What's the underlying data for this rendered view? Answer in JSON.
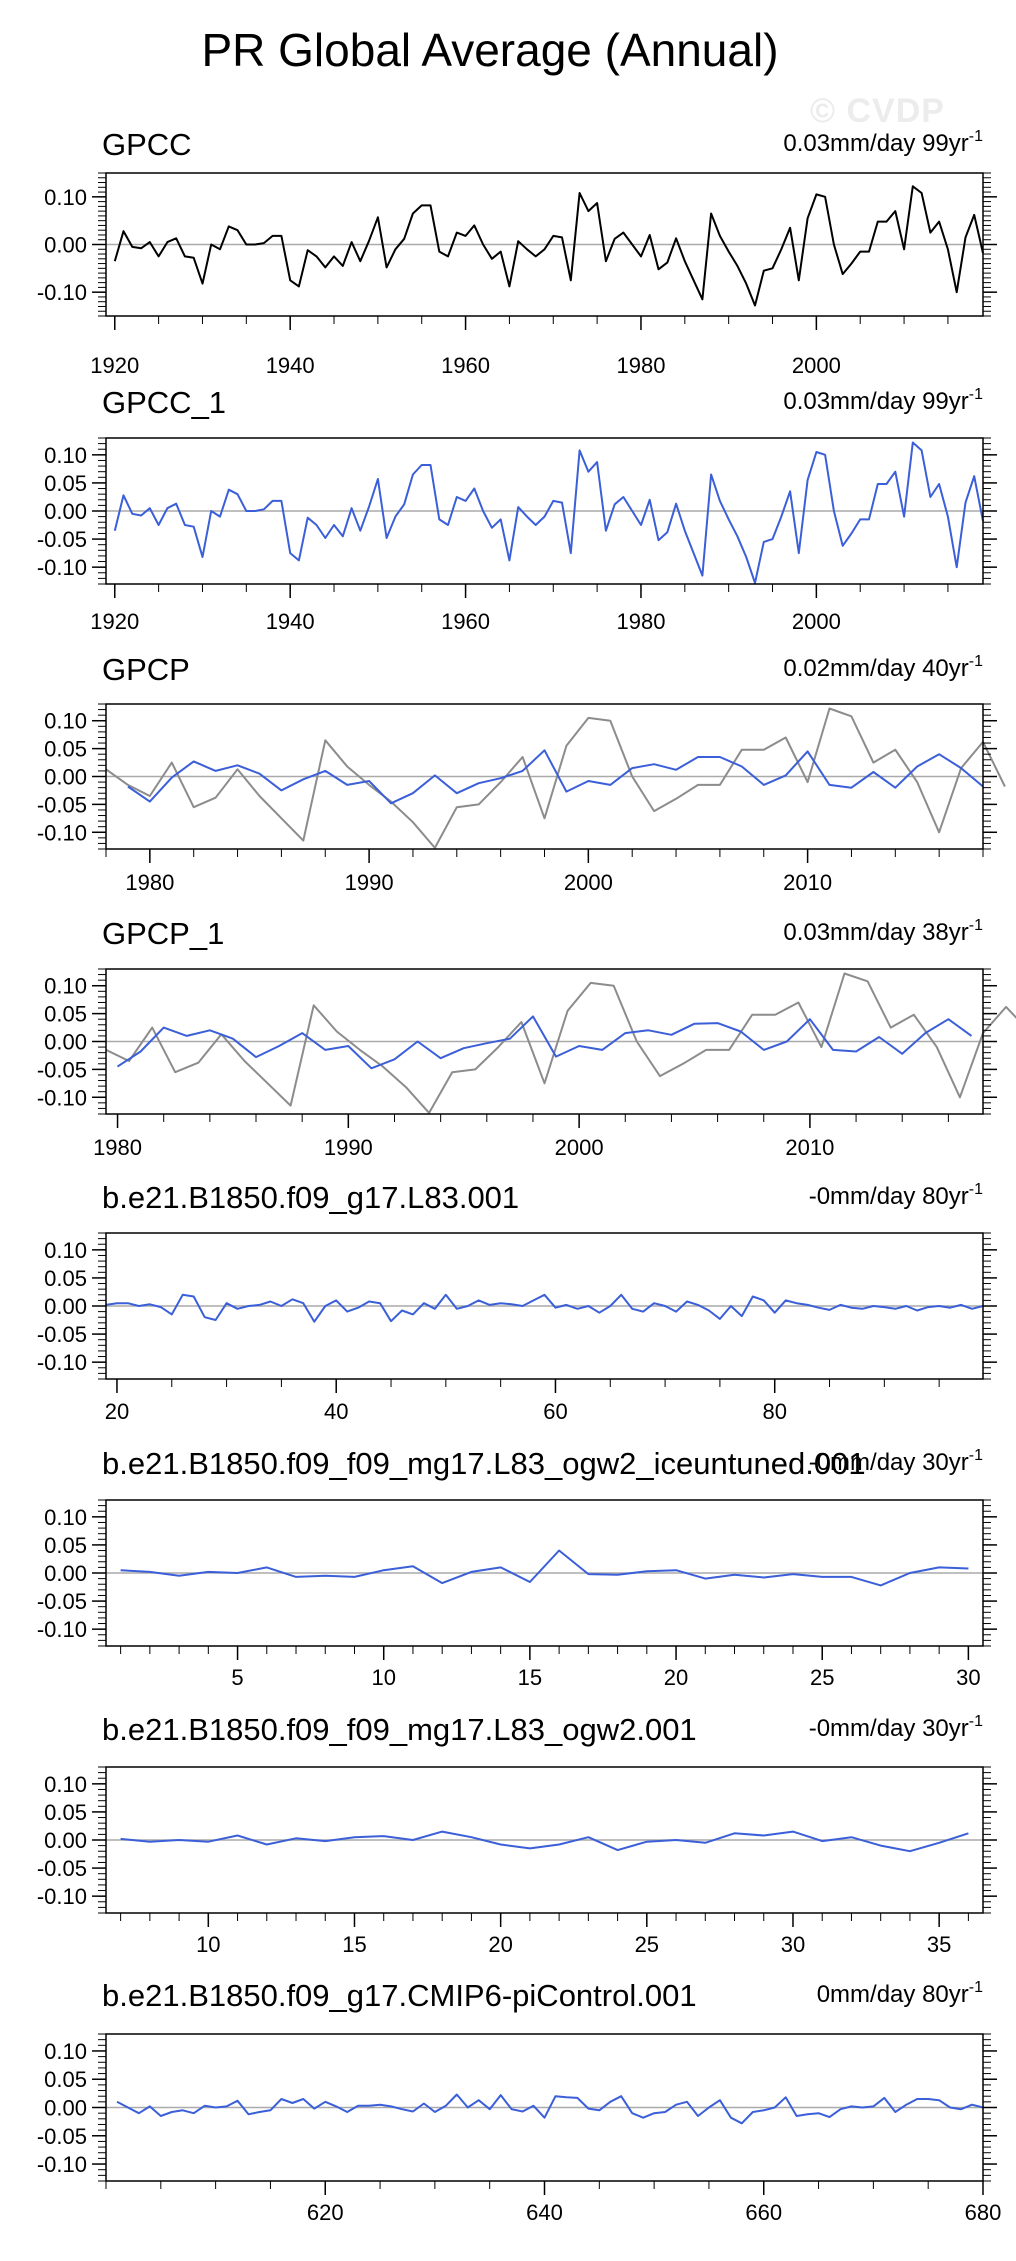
{
  "title": "PR Global Average (Annual)",
  "watermark": "© CVDP",
  "colors": {
    "observation": "#000000",
    "observation_ref": "#8c8c8c",
    "model": "#3b5fd8",
    "zero_line": "#aaaaaa",
    "frame": "#000000"
  },
  "chart_data": [
    {
      "type": "line",
      "title": "GPCC",
      "stats": "0.03mm/day 99yr",
      "stats_superscript": "-1",
      "xlim": [
        1919,
        2019
      ],
      "ylim": [
        -0.15,
        0.15
      ],
      "yticks": [
        0.1,
        0.0,
        -0.1
      ],
      "ytick_labels": [
        "0.10",
        "0.00",
        "-0.10"
      ],
      "xticks": [
        1920,
        1940,
        1960,
        1980,
        2000
      ],
      "xtick_labels": [
        "1920",
        "1940",
        "1960",
        "1980",
        "2000"
      ],
      "series": [
        {
          "name": "GPCC",
          "color": "#000000",
          "x_start": 1920,
          "values": [
            -0.035,
            0.028,
            -0.005,
            -0.008,
            0.005,
            -0.025,
            0.005,
            0.013,
            -0.025,
            -0.028,
            -0.082,
            0.0,
            -0.01,
            0.038,
            0.03,
            0.0,
            0.0,
            0.003,
            0.018,
            0.018,
            -0.075,
            -0.088,
            -0.012,
            -0.025,
            -0.048,
            -0.025,
            -0.045,
            0.005,
            -0.035,
            0.008,
            0.057,
            -0.048,
            -0.01,
            0.012,
            0.065,
            0.082,
            0.082,
            -0.015,
            -0.025,
            0.025,
            0.018,
            0.04,
            0.0,
            -0.03,
            -0.015,
            -0.088,
            0.007,
            -0.01,
            -0.025,
            -0.01,
            0.018,
            0.015,
            -0.075,
            0.108,
            0.07,
            0.087,
            -0.035,
            0.012,
            0.025,
            0.0,
            -0.025,
            0.02,
            -0.052,
            -0.038,
            0.013,
            -0.035,
            -0.075,
            -0.115,
            0.065,
            0.018,
            -0.015,
            -0.045,
            -0.082,
            -0.128,
            -0.055,
            -0.05,
            -0.01,
            0.035,
            -0.075,
            0.055,
            0.105,
            0.1,
            0.0,
            -0.062,
            -0.04,
            -0.015,
            -0.015,
            0.048,
            0.048,
            0.07,
            -0.01,
            0.122,
            0.108,
            0.025,
            0.048,
            -0.01,
            -0.1,
            0.015,
            0.062,
            -0.018
          ]
        }
      ]
    },
    {
      "type": "line",
      "title": "GPCC_1",
      "stats": "0.03mm/day 99yr",
      "stats_superscript": "-1",
      "xlim": [
        1919,
        2019
      ],
      "ylim": [
        -0.13,
        0.13
      ],
      "yticks": [
        0.1,
        0.05,
        0.0,
        -0.05,
        -0.1
      ],
      "ytick_labels": [
        "0.10",
        "0.05",
        "0.00",
        "-0.05",
        "-0.10"
      ],
      "xticks": [
        1920,
        1940,
        1960,
        1980,
        2000
      ],
      "xtick_labels": [
        "1920",
        "1940",
        "1960",
        "1980",
        "2000"
      ],
      "series": [
        {
          "name": "GPCC_1",
          "color": "#3b5fd8",
          "x_start": 1920,
          "values": [
            -0.035,
            0.028,
            -0.005,
            -0.008,
            0.005,
            -0.025,
            0.005,
            0.013,
            -0.025,
            -0.028,
            -0.082,
            0.0,
            -0.01,
            0.038,
            0.03,
            0.0,
            0.0,
            0.003,
            0.018,
            0.018,
            -0.075,
            -0.088,
            -0.012,
            -0.025,
            -0.048,
            -0.025,
            -0.045,
            0.005,
            -0.035,
            0.008,
            0.057,
            -0.048,
            -0.01,
            0.012,
            0.065,
            0.082,
            0.082,
            -0.015,
            -0.025,
            0.025,
            0.018,
            0.04,
            0.0,
            -0.03,
            -0.015,
            -0.088,
            0.007,
            -0.01,
            -0.025,
            -0.01,
            0.018,
            0.015,
            -0.075,
            0.108,
            0.07,
            0.087,
            -0.035,
            0.012,
            0.025,
            0.0,
            -0.025,
            0.02,
            -0.052,
            -0.038,
            0.013,
            -0.035,
            -0.075,
            -0.115,
            0.065,
            0.018,
            -0.015,
            -0.045,
            -0.082,
            -0.128,
            -0.055,
            -0.05,
            -0.01,
            0.035,
            -0.075,
            0.055,
            0.105,
            0.1,
            0.0,
            -0.062,
            -0.04,
            -0.015,
            -0.015,
            0.048,
            0.048,
            0.07,
            -0.01,
            0.122,
            0.108,
            0.025,
            0.048,
            -0.01,
            -0.1,
            0.015,
            0.062,
            -0.018
          ]
        }
      ]
    },
    {
      "type": "line",
      "title": "GPCP",
      "stats": "0.02mm/day 40yr",
      "stats_superscript": "-1",
      "xlim": [
        1978,
        2018
      ],
      "ylim": [
        -0.13,
        0.13
      ],
      "yticks": [
        0.1,
        0.05,
        0.0,
        -0.05,
        -0.1
      ],
      "ytick_labels": [
        "0.10",
        "0.05",
        "0.00",
        "-0.05",
        "-0.10"
      ],
      "xticks": [
        1980,
        1990,
        2000,
        2010
      ],
      "xtick_labels": [
        "1980",
        "1990",
        "2000",
        "2010"
      ],
      "series": [
        {
          "name": "GPCC",
          "color": "#8c8c8c",
          "x_start": 1978,
          "values": [
            0.013,
            -0.015,
            -0.035,
            0.025,
            -0.055,
            -0.038,
            0.013,
            -0.035,
            -0.075,
            -0.115,
            0.065,
            0.018,
            -0.015,
            -0.045,
            -0.082,
            -0.128,
            -0.055,
            -0.05,
            -0.01,
            0.035,
            -0.075,
            0.055,
            0.105,
            0.1,
            0.0,
            -0.062,
            -0.04,
            -0.015,
            -0.015,
            0.048,
            0.048,
            0.07,
            -0.01,
            0.122,
            0.108,
            0.025,
            0.048,
            -0.01,
            -0.1,
            0.015,
            0.062,
            -0.018
          ]
        },
        {
          "name": "GPCP",
          "color": "#3b5fd8",
          "x_start": 1979,
          "values": [
            -0.018,
            -0.045,
            -0.002,
            0.027,
            0.01,
            0.02,
            0.005,
            -0.025,
            -0.005,
            0.01,
            -0.015,
            -0.008,
            -0.048,
            -0.03,
            0.002,
            -0.03,
            -0.012,
            -0.003,
            0.01,
            0.047,
            -0.027,
            -0.008,
            -0.015,
            0.015,
            0.022,
            0.012,
            0.035,
            0.035,
            0.018,
            -0.015,
            0.002,
            0.045,
            -0.015,
            -0.02,
            0.008,
            -0.02,
            0.018,
            0.04,
            0.015,
            -0.018
          ]
        }
      ]
    },
    {
      "type": "line",
      "title": "GPCP_1",
      "stats": "0.03mm/day 38yr",
      "stats_superscript": "-1",
      "xlim": [
        1979.5,
        2017.5
      ],
      "ylim": [
        -0.13,
        0.13
      ],
      "yticks": [
        0.1,
        0.05,
        0.0,
        -0.05,
        -0.1
      ],
      "ytick_labels": [
        "0.10",
        "0.05",
        "0.00",
        "-0.05",
        "-0.10"
      ],
      "xticks": [
        1980,
        1990,
        2000,
        2010
      ],
      "xtick_labels": [
        "1980",
        "1990",
        "2000",
        "2010"
      ],
      "series": [
        {
          "name": "GPCC",
          "color": "#8c8c8c",
          "x_start": 1979.5,
          "values": [
            -0.015,
            -0.035,
            0.025,
            -0.055,
            -0.038,
            0.013,
            -0.035,
            -0.075,
            -0.115,
            0.065,
            0.018,
            -0.015,
            -0.045,
            -0.082,
            -0.128,
            -0.055,
            -0.05,
            -0.01,
            0.035,
            -0.075,
            0.055,
            0.105,
            0.1,
            0.0,
            -0.062,
            -0.04,
            -0.015,
            -0.015,
            0.048,
            0.048,
            0.07,
            -0.01,
            0.122,
            0.108,
            0.025,
            0.048,
            -0.01,
            -0.1,
            0.015,
            0.062,
            0.018
          ]
        },
        {
          "name": "GPCP_1",
          "color": "#3b5fd8",
          "x_start": 1980,
          "values": [
            -0.045,
            -0.018,
            0.025,
            0.01,
            0.02,
            0.005,
            -0.028,
            -0.008,
            0.015,
            -0.015,
            -0.008,
            -0.048,
            -0.032,
            0.0,
            -0.03,
            -0.012,
            -0.003,
            0.005,
            0.045,
            -0.027,
            -0.008,
            -0.015,
            0.015,
            0.02,
            0.012,
            0.032,
            0.033,
            0.018,
            -0.015,
            0.0,
            0.04,
            -0.015,
            -0.018,
            0.008,
            -0.022,
            0.015,
            0.04,
            0.01
          ]
        }
      ]
    },
    {
      "type": "line",
      "title": "b.e21.B1850.f09_g17.L83.001",
      "stats": "-0mm/day 80yr",
      "stats_superscript": "-1",
      "xlim": [
        19,
        99
      ],
      "ylim": [
        -0.13,
        0.13
      ],
      "yticks": [
        0.1,
        0.05,
        0.0,
        -0.05,
        -0.1
      ],
      "ytick_labels": [
        "0.10",
        "0.05",
        "0.00",
        "-0.05",
        "-0.10"
      ],
      "xticks": [
        20,
        40,
        60,
        80
      ],
      "xtick_labels": [
        "20",
        "40",
        "60",
        "80"
      ],
      "series": [
        {
          "name": "b.e21.B1850.f09_g17.L83.001",
          "color": "#3b5fd8",
          "x_start": 19,
          "values": [
            0.002,
            0.005,
            0.005,
            0.0,
            0.003,
            -0.002,
            -0.015,
            0.02,
            0.017,
            -0.02,
            -0.025,
            0.005,
            -0.005,
            0.0,
            0.002,
            0.008,
            0.0,
            0.012,
            0.005,
            -0.028,
            0.0,
            0.01,
            -0.01,
            -0.003,
            0.008,
            0.005,
            -0.027,
            -0.008,
            -0.015,
            0.005,
            -0.005,
            0.02,
            -0.005,
            0.0,
            0.01,
            0.002,
            0.005,
            0.003,
            0.0,
            0.01,
            0.02,
            -0.003,
            0.002,
            -0.005,
            0.0,
            -0.012,
            0.0,
            0.02,
            -0.005,
            -0.01,
            0.005,
            0.0,
            -0.01,
            0.008,
            0.002,
            -0.008,
            -0.023,
            0.0,
            -0.018,
            0.017,
            0.01,
            -0.012,
            0.01,
            0.005,
            0.002,
            -0.003,
            -0.007,
            0.002,
            -0.003,
            -0.005,
            0.0,
            -0.002,
            -0.005,
            0.0,
            -0.008,
            -0.002,
            0.0,
            -0.003,
            0.002,
            -0.005,
            0.0
          ]
        }
      ]
    },
    {
      "type": "line",
      "title": "b.e21.B1850.f09_f09_mg17.L83_ogw2_iceuntuned.001",
      "stats": "-0mm/day 30yr",
      "stats_superscript": "-1",
      "xlim": [
        0.5,
        30.5
      ],
      "ylim": [
        -0.13,
        0.13
      ],
      "yticks": [
        0.1,
        0.05,
        0.0,
        -0.05,
        -0.1
      ],
      "ytick_labels": [
        "0.10",
        "0.05",
        "0.00",
        "-0.05",
        "-0.10"
      ],
      "xticks": [
        5,
        10,
        15,
        20,
        25,
        30
      ],
      "xtick_labels": [
        "5",
        "10",
        "15",
        "20",
        "25",
        "30"
      ],
      "series": [
        {
          "name": "iceuntuned",
          "color": "#3b5fd8",
          "x_start": 1,
          "values": [
            0.005,
            0.002,
            -0.005,
            0.002,
            0.0,
            0.01,
            -0.007,
            -0.005,
            -0.007,
            0.005,
            0.012,
            -0.018,
            0.002,
            0.01,
            -0.016,
            0.04,
            -0.002,
            -0.003,
            0.003,
            0.005,
            -0.01,
            -0.003,
            -0.008,
            -0.002,
            -0.007,
            -0.007,
            -0.022,
            0.0,
            0.01,
            0.008
          ]
        }
      ]
    },
    {
      "type": "line",
      "title": "b.e21.B1850.f09_f09_mg17.L83_ogw2.001",
      "stats": "-0mm/day 30yr",
      "stats_superscript": "-1",
      "xlim": [
        6.5,
        36.5
      ],
      "ylim": [
        -0.13,
        0.13
      ],
      "yticks": [
        0.1,
        0.05,
        0.0,
        -0.05,
        -0.1
      ],
      "ytick_labels": [
        "0.10",
        "0.05",
        "0.00",
        "-0.05",
        "-0.10"
      ],
      "xticks": [
        10,
        15,
        20,
        25,
        30,
        35
      ],
      "xtick_labels": [
        "10",
        "15",
        "20",
        "25",
        "30",
        "35"
      ],
      "series": [
        {
          "name": "ogw2",
          "color": "#3b5fd8",
          "x_start": 7,
          "values": [
            0.002,
            -0.003,
            0.0,
            -0.003,
            0.008,
            -0.008,
            0.003,
            -0.002,
            0.005,
            0.007,
            0.0,
            0.015,
            0.005,
            -0.008,
            -0.015,
            -0.008,
            0.005,
            -0.018,
            -0.003,
            0.0,
            -0.005,
            0.012,
            0.008,
            0.015,
            -0.002,
            0.005,
            -0.01,
            -0.02,
            -0.005,
            0.012
          ]
        }
      ]
    },
    {
      "type": "line",
      "title": "b.e21.B1850.f09_g17.CMIP6-piControl.001",
      "stats": "0mm/day 80yr",
      "stats_superscript": "-1",
      "xlim": [
        600,
        680
      ],
      "ylim": [
        -0.13,
        0.13
      ],
      "yticks": [
        0.1,
        0.05,
        0.0,
        -0.05,
        -0.1
      ],
      "ytick_labels": [
        "0.10",
        "0.05",
        "0.00",
        "-0.05",
        "-0.10"
      ],
      "xticks": [
        620,
        640,
        660,
        680
      ],
      "xtick_labels": [
        "620",
        "640",
        "660",
        "680"
      ],
      "series": [
        {
          "name": "CMIP6-piControl",
          "color": "#3b5fd8",
          "x_start": 601,
          "values": [
            0.01,
            0.0,
            -0.01,
            0.002,
            -0.015,
            -0.008,
            -0.005,
            -0.01,
            0.003,
            0.0,
            0.002,
            0.012,
            -0.012,
            -0.008,
            -0.005,
            0.015,
            0.008,
            0.015,
            -0.002,
            0.01,
            0.002,
            -0.008,
            0.003,
            0.003,
            0.005,
            0.002,
            -0.003,
            -0.007,
            0.007,
            -0.008,
            0.003,
            0.023,
            0.0,
            0.013,
            -0.003,
            0.022,
            -0.003,
            -0.007,
            0.003,
            -0.018,
            0.02,
            0.018,
            0.017,
            -0.002,
            -0.005,
            0.01,
            0.02,
            -0.01,
            -0.018,
            -0.01,
            -0.008,
            0.005,
            0.01,
            -0.015,
            0.0,
            0.013,
            -0.018,
            -0.028,
            -0.008,
            -0.005,
            0.0,
            0.018,
            -0.015,
            -0.012,
            -0.01,
            -0.017,
            -0.003,
            0.002,
            0.0,
            0.002,
            0.017,
            -0.008,
            0.005,
            0.015,
            0.015,
            0.013,
            0.0,
            -0.003,
            0.005,
            0.0
          ]
        }
      ]
    }
  ]
}
